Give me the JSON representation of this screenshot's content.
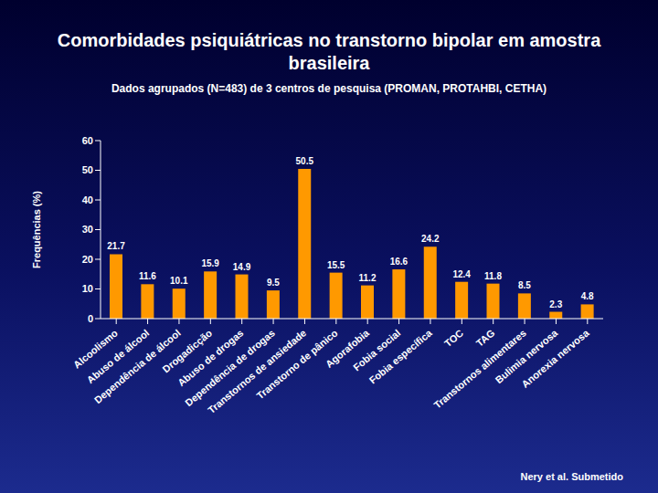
{
  "chart_data": {
    "type": "bar",
    "title": "Comorbidades psiquiátricas no transtorno bipolar em amostra brasileira",
    "subtitle": "Dados agrupados (N=483) de 3 centros de pesquisa (PROMAN, PROTAHBI, CETHA)",
    "y_label": "Frequências (%)",
    "annotations": [
      "Nery et al. Submetido"
    ],
    "categories": [
      "Alcoolismo",
      "Abuso de álcool",
      "Dependência de álcool",
      "Drogadicção",
      "Abuso de drogas",
      "Dependência de drogas",
      "Transtornos de ansiedade",
      "Transtorno de pânico",
      "Agorafobia",
      "Fobia social",
      "Fobia específica",
      "TOC",
      "TAG",
      "Transtornos alimentares",
      "Bulimia nervosa",
      "Anorexia nervosa"
    ],
    "values": [
      21.7,
      11.6,
      10.1,
      15.9,
      14.9,
      9.5,
      50.5,
      15.5,
      11.2,
      16.6,
      24.2,
      12.4,
      11.8,
      8.5,
      2.3,
      4.8
    ],
    "color": "#ff9900",
    "ylim": [
      0,
      60
    ],
    "yticks": [
      0,
      10,
      20,
      30,
      40,
      50,
      60
    ],
    "grid": false,
    "data_labels": true
  }
}
